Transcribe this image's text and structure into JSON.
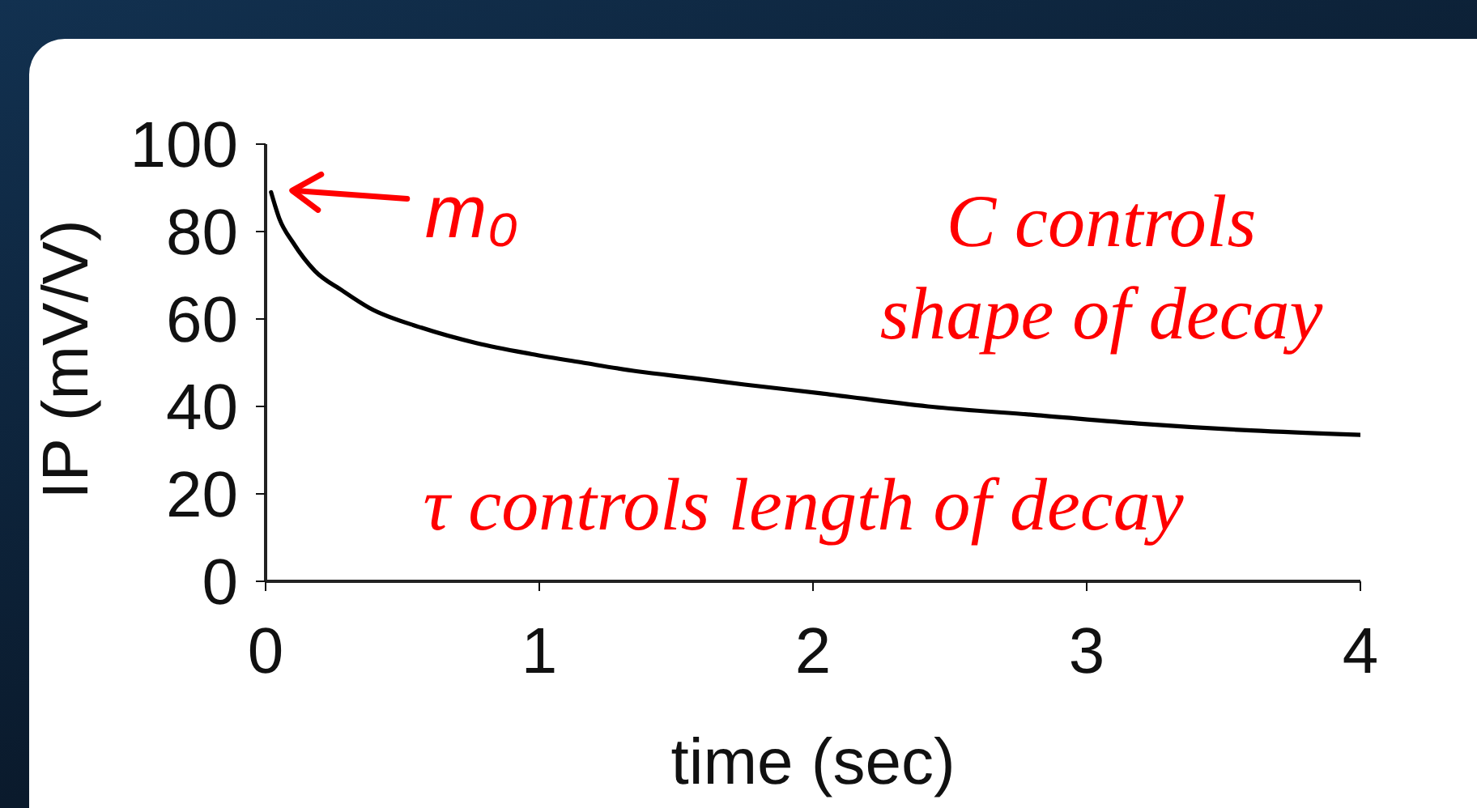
{
  "chart_data": {
    "type": "line",
    "xlabel": "time (sec)",
    "ylabel": "IP (mV/V)",
    "x": [
      0.02,
      0.05,
      0.1,
      0.18,
      0.28,
      0.38,
      0.57,
      0.77,
      0.97,
      1.16,
      1.36,
      1.56,
      1.75,
      2.03,
      2.42,
      2.82,
      3.21,
      3.6,
      4.0
    ],
    "values": [
      89,
      83,
      77.5,
      71,
      66.5,
      62.5,
      58,
      54.5,
      52,
      50,
      48,
      46.5,
      45,
      43,
      40,
      38,
      36,
      34.5,
      33.5
    ],
    "color": "#000000",
    "line_style": "solid",
    "xlim": [
      0,
      4
    ],
    "xticks": [
      0,
      1,
      2,
      3,
      4
    ],
    "ylim": [
      0,
      100
    ],
    "yticks": [
      0,
      20,
      40,
      60,
      80,
      100
    ],
    "annotations": [
      {
        "text": "m₀",
        "x": 0.02,
        "y": 89
      },
      "C controls shape of decay",
      "τ controls length of decay"
    ]
  }
}
